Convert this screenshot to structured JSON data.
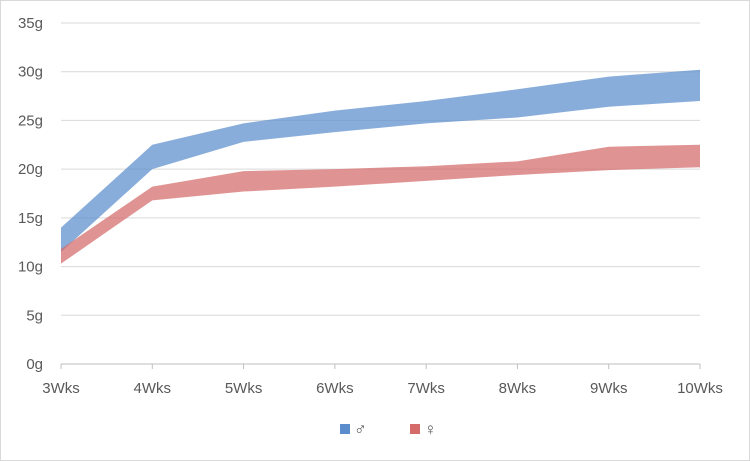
{
  "chart_data": {
    "type": "area",
    "categories": [
      "3Wks",
      "4Wks",
      "5Wks",
      "6Wks",
      "7Wks",
      "8Wks",
      "9Wks",
      "10Wks"
    ],
    "ylim": [
      0,
      35
    ],
    "yticks": [
      "0g",
      "5g",
      "10g",
      "15g",
      "20g",
      "25g",
      "30g",
      "35g"
    ],
    "grid": true,
    "legend_position": "bottom",
    "series": [
      {
        "name": "♂",
        "color": "#5b8dcc",
        "lower": [
          11.5,
          20.0,
          22.8,
          23.8,
          24.7,
          25.3,
          26.4,
          27.0
        ],
        "upper": [
          14.0,
          22.5,
          24.7,
          26.0,
          27.0,
          28.2,
          29.5,
          30.2
        ]
      },
      {
        "name": "♀",
        "color": "#d46a6a",
        "lower": [
          10.3,
          16.8,
          17.7,
          18.2,
          18.8,
          19.4,
          19.9,
          20.2
        ],
        "upper": [
          11.8,
          18.2,
          19.8,
          20.0,
          20.3,
          20.8,
          22.3,
          22.5
        ]
      }
    ]
  }
}
